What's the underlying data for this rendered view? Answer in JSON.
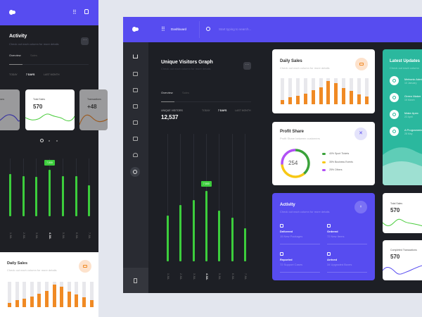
{
  "colors": {
    "accent": "#574cf0",
    "green": "#3ccd3c",
    "orange": "#f08a24",
    "teal": "#2bb89e",
    "purple": "#b150f5",
    "yellow": "#f7c815"
  },
  "mobile": {
    "activity": {
      "title": "Activity",
      "subtitle": "Check out each column for more details",
      "tabs": [
        "Overview",
        "Sales"
      ],
      "periods": [
        "TODAY",
        "7 DAYS",
        "LAST MONTH"
      ],
      "active_period": "7 DAYS"
    },
    "cards": [
      {
        "label": "Transactions",
        "value": ""
      },
      {
        "label": "Total Sales",
        "value": "570"
      },
      {
        "label": "Transactions",
        "value": "+48"
      }
    ],
    "chart": {
      "labels": [
        "1 JUL",
        "2 JUL",
        "3 JUL",
        "4 JUL",
        "5 JUL",
        "6 JUL",
        "7 JUL"
      ],
      "values": [
        0.73,
        0.7,
        0.68,
        0.8,
        0.7,
        0.69,
        0.54
      ],
      "tooltip": "7,500",
      "highlight": 3
    },
    "daily_sales": {
      "title": "Daily Sales",
      "subtitle": "Check out each column for more details"
    }
  },
  "header": {
    "nav_label": "Dashboard",
    "search_placeholder": "Start typing to search..."
  },
  "visitors": {
    "title": "Unique Visitors Graph",
    "subtitle": "Check out each column for more details",
    "tabs": [
      "Overview",
      "Sales"
    ],
    "metric_label": "UNIQUE VISITORS",
    "metric_value": "12,537",
    "periods": [
      "TODAY",
      "7 DAYS",
      "LAST MONTH"
    ],
    "active_period": "7 DAYS",
    "labels": [
      "1 JUL",
      "2 JUL",
      "3 JUL",
      "4 JUL",
      "5 JUL",
      "6 JUL",
      "7 JUL"
    ],
    "values": [
      0.36,
      0.44,
      0.48,
      0.55,
      0.4,
      0.34,
      0.26
    ],
    "tooltip": "7,500",
    "highlight": 3
  },
  "daily_sales": {
    "title": "Daily Sales",
    "subtitle": "Check out each column for more details",
    "values": [
      0.16,
      0.27,
      0.33,
      0.41,
      0.54,
      0.65,
      0.88,
      0.81,
      0.62,
      0.51,
      0.38,
      0.29
    ]
  },
  "profit_share": {
    "title": "Profit Share",
    "subtitle": "Profit Share between customers",
    "total": "254",
    "legend": [
      {
        "label": "40% Sport Tickets",
        "color": "#3aa23a",
        "pct": 40
      },
      {
        "label": "35% Business Events",
        "color": "#f7c815",
        "pct": 35
      },
      {
        "label": "25% Others",
        "color": "#b150f5",
        "pct": 25
      }
    ]
  },
  "latest_updates": {
    "title": "Latest Updates",
    "subtitle": "Check out each column",
    "items": [
      {
        "title": "Metronic Admin",
        "date": "10 January"
      },
      {
        "title": "Green Maker",
        "date": "15 March"
      },
      {
        "title": "Make Apex",
        "date": "22 April"
      },
      {
        "title": "A Programming",
        "date": "28 May"
      }
    ]
  },
  "activity": {
    "title": "Activity",
    "subtitle": "Check out each column for more details",
    "items": [
      {
        "title": "Delivered",
        "detail": "15 New Packages"
      },
      {
        "title": "Ordered",
        "detail": "72 New Items"
      },
      {
        "title": "Reported",
        "detail": "72 Support Cases"
      },
      {
        "title": "Arrived",
        "detail": "34 Upgraded Boxes"
      }
    ]
  },
  "total_sales": {
    "label": "Total Sales",
    "value": "570"
  },
  "completed": {
    "label": "Completed Transactions",
    "value": "570"
  }
}
